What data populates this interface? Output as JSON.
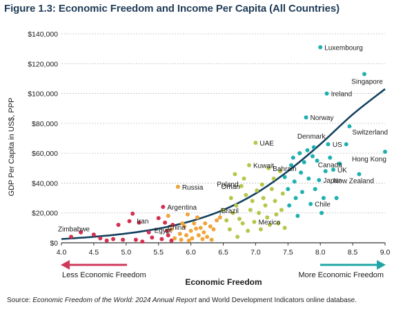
{
  "figure": {
    "title": "Figure 1.3: Economic Freedom and Income Per Capita (All Countries)",
    "source_prefix": "Source: ",
    "source_italic": "Economic Freedom of the World: 2024 Annual Report",
    "source_suffix": " and World Development Indicators online database."
  },
  "colors": {
    "axis": "#333333",
    "grid": "#bdbdbd",
    "curve": "#12405e",
    "arrow_left": "#d0385a",
    "arrow_right": "#1fa5a5",
    "red": "#d4304f",
    "orange": "#f0a43c",
    "olive": "#b7c64a",
    "teal": "#1fb0b0"
  },
  "chart_data": {
    "type": "scatter",
    "title": "Figure 1.3: Economic Freedom and Income Per Capita (All Countries)",
    "xlabel": "Economic Freedom",
    "ylabel": "GDP Per Capita in US$, PPP",
    "xlim": [
      4.0,
      9.0
    ],
    "ylim": [
      0,
      140000
    ],
    "x_ticks": [
      "4.0",
      "4.5",
      "5.0",
      "5.5",
      "6.0",
      "6.5",
      "7.0",
      "7.5",
      "8.0",
      "8.5",
      "9.0"
    ],
    "y_ticks": [
      "$0",
      "$20,000",
      "$40,000",
      "$60,000",
      "$80,000",
      "$100,000",
      "$120,000",
      "$140,000"
    ],
    "grid": "horizontal",
    "arrow_left_label": "Less Economic Freedom",
    "arrow_right_label": "More Economic Freedom",
    "trendline": {
      "type": "exponential",
      "points": [
        [
          4.0,
          2500
        ],
        [
          4.5,
          4000
        ],
        [
          5.0,
          6200
        ],
        [
          5.5,
          9500
        ],
        [
          6.0,
          14500
        ],
        [
          6.5,
          22000
        ],
        [
          7.0,
          33000
        ],
        [
          7.5,
          48000
        ],
        [
          8.0,
          66000
        ],
        [
          8.5,
          86000
        ],
        [
          9.0,
          103000
        ]
      ]
    },
    "series": [
      {
        "color_key": "red",
        "points": [
          [
            4.15,
            4000
          ],
          [
            4.3,
            7000
          ],
          [
            4.5,
            5500
          ],
          [
            4.6,
            3000
          ],
          [
            4.7,
            1500
          ],
          [
            4.8,
            2500
          ],
          [
            4.88,
            12000
          ],
          [
            4.95,
            2000
          ],
          [
            5.05,
            14500
          ],
          [
            5.1,
            19500
          ],
          [
            5.15,
            2000
          ],
          [
            5.2,
            13500
          ],
          [
            5.25,
            800
          ],
          [
            5.35,
            7000
          ],
          [
            5.4,
            3500
          ],
          [
            5.5,
            16500
          ],
          [
            5.55,
            2500
          ],
          [
            5.57,
            24000
          ],
          [
            5.6,
            13500
          ],
          [
            5.63,
            8000
          ],
          [
            5.65,
            5000
          ],
          [
            5.7,
            1500
          ],
          [
            5.72,
            12000
          ]
        ]
      },
      {
        "color_key": "orange",
        "points": [
          [
            5.65,
            18000
          ],
          [
            5.7,
            9000
          ],
          [
            5.75,
            3000
          ],
          [
            5.8,
            37500
          ],
          [
            5.83,
            6000
          ],
          [
            5.85,
            2000
          ],
          [
            5.87,
            13000
          ],
          [
            5.9,
            11000
          ],
          [
            5.93,
            5000
          ],
          [
            5.95,
            19000
          ],
          [
            5.97,
            1500
          ],
          [
            6.0,
            8000
          ],
          [
            6.02,
            3000
          ],
          [
            6.05,
            13000
          ],
          [
            6.08,
            9500
          ],
          [
            6.1,
            17000
          ],
          [
            6.12,
            5000
          ],
          [
            6.15,
            10000
          ],
          [
            6.18,
            2500
          ],
          [
            6.2,
            7000
          ],
          [
            6.22,
            13000
          ],
          [
            6.25,
            4000
          ],
          [
            6.3,
            11000
          ],
          [
            6.32,
            2000
          ],
          [
            6.35,
            9000
          ],
          [
            6.4,
            15000
          ],
          [
            6.45,
            17000
          ]
        ]
      },
      {
        "color_key": "olive",
        "points": [
          [
            6.5,
            22000
          ],
          [
            6.55,
            15000
          ],
          [
            6.6,
            9000
          ],
          [
            6.62,
            30000
          ],
          [
            6.65,
            20000
          ],
          [
            6.68,
            46000
          ],
          [
            6.7,
            25000
          ],
          [
            6.72,
            4000
          ],
          [
            6.75,
            16000
          ],
          [
            6.78,
            38000
          ],
          [
            6.8,
            13000
          ],
          [
            6.82,
            43000
          ],
          [
            6.85,
            32000
          ],
          [
            6.88,
            8000
          ],
          [
            6.9,
            52000
          ],
          [
            6.92,
            22000
          ],
          [
            6.95,
            28000
          ],
          [
            6.98,
            14000
          ],
          [
            7.0,
            67000
          ],
          [
            7.02,
            35000
          ],
          [
            7.05,
            20000
          ],
          [
            7.08,
            9000
          ],
          [
            7.1,
            39000
          ],
          [
            7.12,
            30000
          ],
          [
            7.15,
            25000
          ],
          [
            7.18,
            17000
          ],
          [
            7.2,
            50000
          ],
          [
            7.22,
            12000
          ],
          [
            7.25,
            36000
          ],
          [
            7.28,
            43000
          ],
          [
            7.3,
            28000
          ],
          [
            7.32,
            19000
          ],
          [
            7.35,
            13000
          ],
          [
            7.38,
            48000
          ],
          [
            7.4,
            22000
          ],
          [
            7.42,
            33000
          ],
          [
            7.45,
            10000
          ]
        ]
      },
      {
        "color_key": "teal",
        "points": [
          [
            7.45,
            44000
          ],
          [
            7.5,
            36000
          ],
          [
            7.52,
            25000
          ],
          [
            7.55,
            52000
          ],
          [
            7.58,
            57000
          ],
          [
            7.6,
            41000
          ],
          [
            7.62,
            30000
          ],
          [
            7.65,
            18000
          ],
          [
            7.68,
            60000
          ],
          [
            7.7,
            47000
          ],
          [
            7.72,
            34000
          ],
          [
            7.75,
            54000
          ],
          [
            7.78,
            84000
          ],
          [
            7.8,
            62000
          ],
          [
            7.82,
            43000
          ],
          [
            7.85,
            26000
          ],
          [
            7.88,
            58000
          ],
          [
            7.9,
            64000
          ],
          [
            7.92,
            36000
          ],
          [
            7.95,
            55000
          ],
          [
            7.98,
            42000
          ],
          [
            8.0,
            131000
          ],
          [
            8.02,
            20000
          ],
          [
            8.05,
            30000
          ],
          [
            8.08,
            48000
          ],
          [
            8.1,
            100000
          ],
          [
            8.12,
            66000
          ],
          [
            8.15,
            57000
          ],
          [
            8.2,
            49000
          ],
          [
            8.25,
            30000
          ],
          [
            8.3,
            53000
          ],
          [
            8.4,
            66000
          ],
          [
            8.45,
            78000
          ],
          [
            8.6,
            46000
          ],
          [
            8.68,
            113000
          ],
          [
            9.0,
            61000
          ]
        ]
      }
    ],
    "annotations": [
      {
        "label": "Luxembourg",
        "x": 8.0,
        "y": 131000,
        "side": "right"
      },
      {
        "label": "Singapore",
        "x": 8.68,
        "y": 113000,
        "side": "below-left"
      },
      {
        "label": "Ireland",
        "x": 8.1,
        "y": 100000,
        "side": "right"
      },
      {
        "label": "Norway",
        "x": 7.78,
        "y": 84000,
        "side": "right"
      },
      {
        "label": "Denmark",
        "x": 8.12,
        "y": 66000,
        "side": "above-left"
      },
      {
        "label": "Switzerland",
        "x": 8.45,
        "y": 78000,
        "side": "below"
      },
      {
        "label": "US",
        "x": 8.4,
        "y": 66000,
        "side": "left"
      },
      {
        "label": "Hong Kong",
        "x": 9.0,
        "y": 61000,
        "side": "below-left"
      },
      {
        "label": "Canada",
        "x": 8.15,
        "y": 57000,
        "side": "below"
      },
      {
        "label": "UK",
        "x": 8.2,
        "y": 49000,
        "side": "right"
      },
      {
        "label": "Japan",
        "x": 7.98,
        "y": 42000,
        "side": "right"
      },
      {
        "label": "New Zealand",
        "x": 8.6,
        "y": 46000,
        "side": "below"
      },
      {
        "label": "Chile",
        "x": 7.85,
        "y": 26000,
        "side": "right"
      },
      {
        "label": "UAE",
        "x": 7.0,
        "y": 67000,
        "side": "right"
      },
      {
        "label": "Kuwait",
        "x": 6.9,
        "y": 52000,
        "side": "right"
      },
      {
        "label": "Bahrain",
        "x": 7.2,
        "y": 50000,
        "side": "right"
      },
      {
        "label": "Poland",
        "x": 6.68,
        "y": 46000,
        "side": "below"
      },
      {
        "label": "Oman",
        "x": 6.78,
        "y": 38000,
        "side": "left"
      },
      {
        "label": "Mexico",
        "x": 6.98,
        "y": 14000,
        "side": "right"
      },
      {
        "label": "Brazil",
        "x": 6.45,
        "y": 17000,
        "side": "above"
      },
      {
        "label": "Russia",
        "x": 5.8,
        "y": 37500,
        "side": "right"
      },
      {
        "label": "Argentina",
        "x": 5.57,
        "y": 24000,
        "side": "right"
      },
      {
        "label": "China",
        "x": 5.95,
        "y": 19000,
        "side": "below"
      },
      {
        "label": "Egypt",
        "x": 5.75,
        "y": 3000,
        "side": "above-left"
      },
      {
        "label": "Iran",
        "x": 5.1,
        "y": 19500,
        "side": "below"
      },
      {
        "label": "Zimbabwe",
        "x": 4.15,
        "y": 4000,
        "side": "above"
      }
    ]
  }
}
